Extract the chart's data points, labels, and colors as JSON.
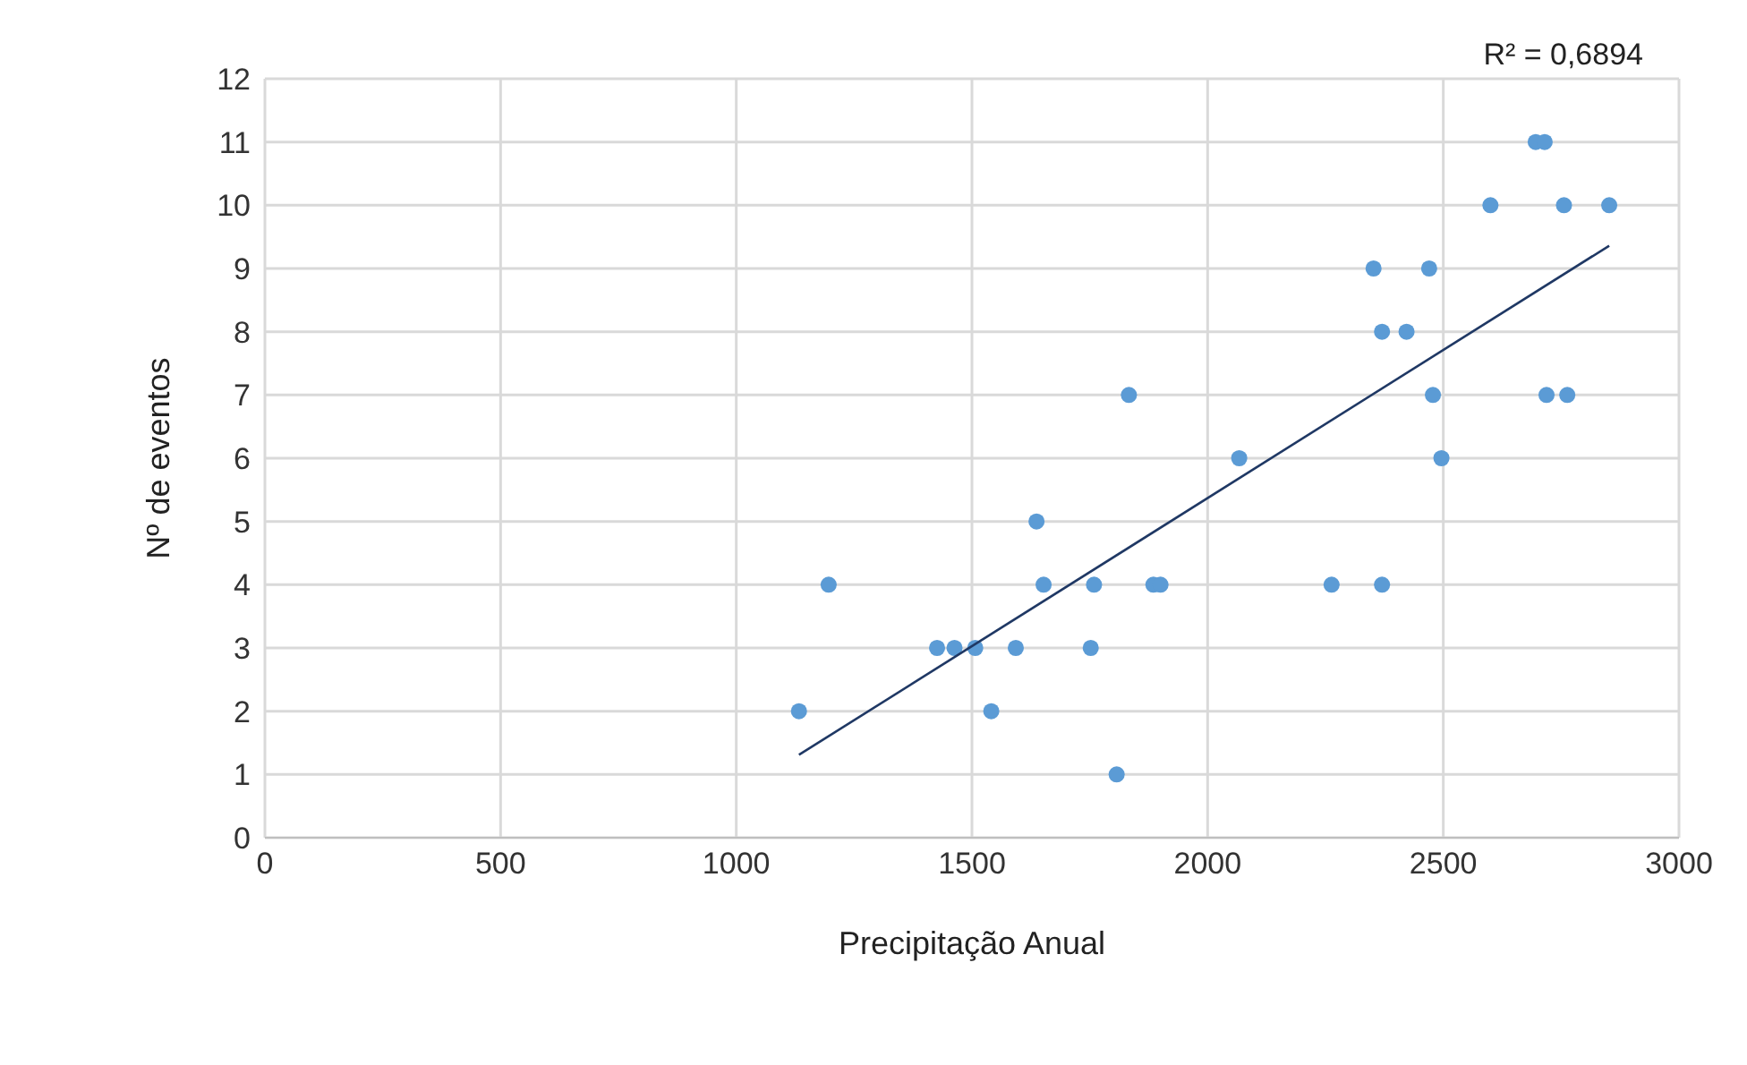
{
  "chart_data": {
    "type": "scatter",
    "xlabel": "Precipitação Anual",
    "ylabel": "Nº de eventos",
    "annotations": [
      "R² = 0,6894"
    ],
    "xlim": [
      0,
      3000
    ],
    "xticks": [
      0,
      500,
      1000,
      1500,
      2000,
      2500,
      3000
    ],
    "ylim": [
      0,
      12
    ],
    "yticks": [
      0,
      1,
      2,
      3,
      4,
      5,
      6,
      7,
      8,
      9,
      10,
      11,
      12
    ],
    "grid": true,
    "marker": "circle",
    "series": [
      {
        "color": "#5b9bd5",
        "x": [
          1133,
          1196,
          1426,
          1463,
          1507,
          1541,
          1593,
          1637,
          1652,
          1752,
          1759,
          1807,
          1833,
          1885,
          1900,
          2067,
          2263,
          2352,
          2370,
          2370,
          2422,
          2470,
          2478,
          2496,
          2600,
          2696,
          2715,
          2719,
          2756,
          2763,
          2852
        ],
        "values": [
          2,
          4,
          3,
          3,
          3,
          2,
          3,
          5,
          4,
          3,
          4,
          1,
          7,
          4,
          4,
          6,
          4,
          9,
          8,
          4,
          8,
          9,
          7,
          6,
          10,
          11,
          11,
          7,
          10,
          7,
          10
        ]
      },
      {
        "type": "line",
        "color": "#1f3864",
        "marker": "none",
        "x": [
          1133,
          2852
        ],
        "values": [
          1.31,
          9.36
        ]
      }
    ]
  }
}
